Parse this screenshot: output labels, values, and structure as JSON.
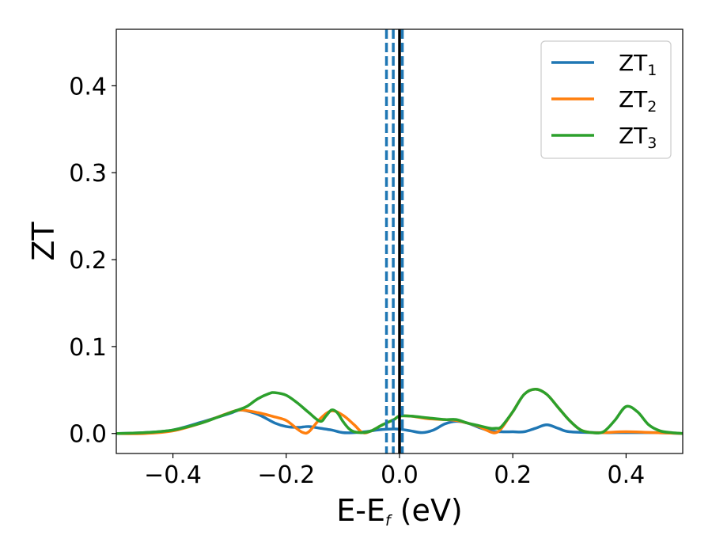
{
  "chart_data": {
    "type": "line",
    "xlabel_main": "E-E",
    "xlabel_sub": "f",
    "xlabel_unit": " (eV)",
    "ylabel": "ZT",
    "xlim": [
      -0.5,
      0.5
    ],
    "ylim": [
      -0.023,
      0.465
    ],
    "xticks": [
      -0.4,
      -0.2,
      0.0,
      0.2,
      0.4
    ],
    "xtick_labels": [
      "−0.4",
      "−0.2",
      "0.0",
      "0.2",
      "0.4"
    ],
    "yticks": [
      0.0,
      0.1,
      0.2,
      0.3,
      0.4
    ],
    "ytick_labels": [
      "0.0",
      "0.1",
      "0.2",
      "0.3",
      "0.4"
    ],
    "grid": false,
    "legend_position": "top-right",
    "fermi_line": 0.0,
    "dashed_lines_x": [
      -0.023,
      -0.011,
      0.005
    ],
    "series": [
      {
        "name": "ZT",
        "name_sub": "1",
        "color": "#1f77b4",
        "x": [
          -0.5,
          -0.45,
          -0.4,
          -0.35,
          -0.3,
          -0.28,
          -0.25,
          -0.22,
          -0.2,
          -0.18,
          -0.16,
          -0.14,
          -0.12,
          -0.1,
          -0.08,
          -0.06,
          -0.04,
          -0.02,
          0.0,
          0.02,
          0.04,
          0.06,
          0.08,
          0.1,
          0.12,
          0.14,
          0.16,
          0.18,
          0.2,
          0.22,
          0.24,
          0.26,
          0.28,
          0.3,
          0.35,
          0.4,
          0.45,
          0.5
        ],
        "y": [
          0.0,
          0.001,
          0.004,
          0.013,
          0.023,
          0.027,
          0.022,
          0.012,
          0.008,
          0.007,
          0.008,
          0.006,
          0.004,
          0.001,
          0.001,
          0.002,
          0.004,
          0.005,
          0.005,
          0.003,
          0.001,
          0.004,
          0.011,
          0.014,
          0.012,
          0.007,
          0.003,
          0.002,
          0.002,
          0.002,
          0.006,
          0.01,
          0.006,
          0.002,
          0.001,
          0.001,
          0.001,
          0.0
        ]
      },
      {
        "name": "ZT",
        "name_sub": "2",
        "color": "#ff7f0e",
        "x": [
          -0.5,
          -0.45,
          -0.4,
          -0.35,
          -0.3,
          -0.28,
          -0.25,
          -0.22,
          -0.2,
          -0.18,
          -0.17,
          -0.16,
          -0.14,
          -0.12,
          -0.1,
          -0.08,
          -0.065,
          -0.05,
          -0.03,
          -0.01,
          0.0,
          0.02,
          0.05,
          0.08,
          0.1,
          0.12,
          0.14,
          0.16,
          0.17,
          0.18,
          0.2,
          0.22,
          0.24,
          0.26,
          0.28,
          0.3,
          0.32,
          0.34,
          0.36,
          0.4,
          0.45,
          0.5
        ],
        "y": [
          0.0,
          0.0,
          0.003,
          0.012,
          0.024,
          0.027,
          0.024,
          0.019,
          0.015,
          0.005,
          0.001,
          0.002,
          0.017,
          0.026,
          0.021,
          0.01,
          0.001,
          0.003,
          0.01,
          0.016,
          0.02,
          0.02,
          0.017,
          0.016,
          0.015,
          0.012,
          0.008,
          0.002,
          0.001,
          0.006,
          0.025,
          0.045,
          0.051,
          0.045,
          0.03,
          0.015,
          0.004,
          0.001,
          0.001,
          0.002,
          0.001,
          0.0
        ]
      },
      {
        "name": "ZT",
        "name_sub": "3",
        "color": "#2ca02c",
        "x": [
          -0.5,
          -0.45,
          -0.4,
          -0.35,
          -0.32,
          -0.29,
          -0.27,
          -0.25,
          -0.23,
          -0.22,
          -0.2,
          -0.18,
          -0.16,
          -0.14,
          -0.13,
          -0.12,
          -0.11,
          -0.1,
          -0.09,
          -0.08,
          -0.065,
          -0.05,
          -0.03,
          -0.01,
          0.0,
          0.02,
          0.05,
          0.08,
          0.1,
          0.12,
          0.14,
          0.16,
          0.17,
          0.18,
          0.2,
          0.22,
          0.24,
          0.26,
          0.28,
          0.3,
          0.32,
          0.34,
          0.36,
          0.38,
          0.4,
          0.42,
          0.44,
          0.46,
          0.48,
          0.5
        ],
        "y": [
          0.0,
          0.001,
          0.004,
          0.012,
          0.019,
          0.026,
          0.031,
          0.04,
          0.046,
          0.047,
          0.044,
          0.035,
          0.024,
          0.014,
          0.02,
          0.027,
          0.024,
          0.014,
          0.006,
          0.002,
          0.001,
          0.003,
          0.01,
          0.016,
          0.02,
          0.02,
          0.018,
          0.016,
          0.016,
          0.012,
          0.009,
          0.006,
          0.006,
          0.008,
          0.025,
          0.045,
          0.051,
          0.045,
          0.03,
          0.015,
          0.004,
          0.001,
          0.002,
          0.015,
          0.031,
          0.025,
          0.01,
          0.003,
          0.001,
          0.0
        ]
      }
    ]
  }
}
